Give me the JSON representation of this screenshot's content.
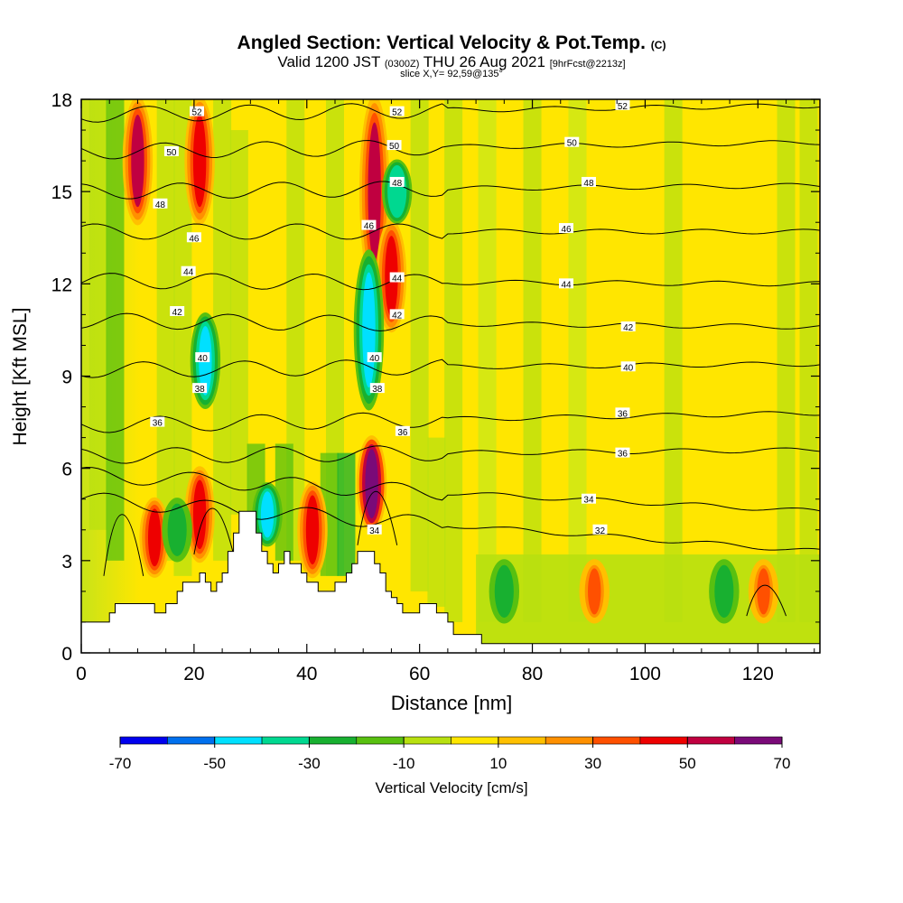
{
  "title": {
    "main": "Angled Section: Vertical Velocity & Pot.Temp.",
    "main_unit": "(C)",
    "valid_a": "Valid 1200 JST",
    "valid_z": "(0300Z)",
    "valid_b": "THU 26 Aug 2021",
    "fcst": "[9hrFcst@2213z]",
    "slice": "slice X,Y= 92,59@135°"
  },
  "colorbar": {
    "label": "Vertical Velocity [cm/s]",
    "tick_labels": [
      "-70",
      "-50",
      "-30",
      "-10",
      "10",
      "30",
      "50",
      "70"
    ],
    "colors": [
      "#0000ee",
      "#0070ee",
      "#00e0ff",
      "#00d890",
      "#18b030",
      "#58c010",
      "#b8e010",
      "#ffe600",
      "#ffc000",
      "#ff9000",
      "#ff5000",
      "#ee0000",
      "#c00040",
      "#7a0a78"
    ]
  },
  "chart_data": {
    "type": "heatmap",
    "title": "Angled Section: Vertical Velocity & Pot.Temp. (C)",
    "xlabel": "Distance [nm]",
    "ylabel": "Height [Kft MSL]",
    "xlim": [
      0,
      131
    ],
    "ylim": [
      0,
      18
    ],
    "xticks": [
      0,
      20,
      40,
      60,
      80,
      100,
      120
    ],
    "yticks": [
      0,
      3,
      6,
      9,
      12,
      15,
      18
    ],
    "filled_variable": "Vertical Velocity [cm/s]",
    "color_levels": [
      -70,
      -60,
      -50,
      -40,
      -30,
      -20,
      -10,
      0,
      10,
      20,
      30,
      40,
      50,
      60,
      70
    ],
    "terrain": [
      [
        0,
        0
      ],
      [
        0,
        1
      ],
      [
        1,
        1
      ],
      [
        5,
        1
      ],
      [
        5,
        1.3
      ],
      [
        6,
        1.3
      ],
      [
        6,
        1.6
      ],
      [
        9,
        1.6
      ],
      [
        9,
        1.6
      ],
      [
        13,
        1.6
      ],
      [
        13,
        1.3
      ],
      [
        15,
        1.3
      ],
      [
        15,
        1.6
      ],
      [
        17,
        1.6
      ],
      [
        17,
        2
      ],
      [
        18,
        2
      ],
      [
        18,
        2.3
      ],
      [
        21,
        2.3
      ],
      [
        21,
        2.6
      ],
      [
        22,
        2.6
      ],
      [
        22,
        2.3
      ],
      [
        23,
        2.3
      ],
      [
        23,
        2
      ],
      [
        24,
        2
      ],
      [
        24,
        2.3
      ],
      [
        25,
        2.3
      ],
      [
        25,
        2.6
      ],
      [
        26,
        2.6
      ],
      [
        26,
        3.3
      ],
      [
        27,
        3.3
      ],
      [
        27,
        3.9
      ],
      [
        28,
        3.9
      ],
      [
        28,
        4.6
      ],
      [
        31,
        4.6
      ],
      [
        31,
        3.9
      ],
      [
        32,
        3.9
      ],
      [
        32,
        3.3
      ],
      [
        33,
        3.3
      ],
      [
        33,
        2.9
      ],
      [
        34,
        2.9
      ],
      [
        34,
        2.6
      ],
      [
        35,
        2.6
      ],
      [
        35,
        2.9
      ],
      [
        36,
        2.9
      ],
      [
        36,
        3.3
      ],
      [
        37,
        3.3
      ],
      [
        37,
        2.9
      ],
      [
        39,
        2.9
      ],
      [
        39,
        2.6
      ],
      [
        40,
        2.6
      ],
      [
        40,
        2.3
      ],
      [
        42,
        2.3
      ],
      [
        42,
        2
      ],
      [
        45,
        2
      ],
      [
        45,
        2.3
      ],
      [
        47,
        2.3
      ],
      [
        47,
        2.6
      ],
      [
        48,
        2.6
      ],
      [
        48,
        2.9
      ],
      [
        49,
        2.9
      ],
      [
        49,
        3.3
      ],
      [
        52,
        3.3
      ],
      [
        52,
        2.9
      ],
      [
        53,
        2.9
      ],
      [
        53,
        2.6
      ],
      [
        54,
        2.6
      ],
      [
        54,
        2
      ],
      [
        55,
        2
      ],
      [
        55,
        1.8
      ],
      [
        56,
        1.8
      ],
      [
        56,
        1.6
      ],
      [
        57,
        1.6
      ],
      [
        57,
        1.3
      ],
      [
        60,
        1.3
      ],
      [
        60,
        1.6
      ],
      [
        63,
        1.6
      ],
      [
        63,
        1.3
      ],
      [
        65,
        1.3
      ],
      [
        65,
        1
      ],
      [
        66,
        1
      ],
      [
        66,
        0.6
      ],
      [
        71,
        0.6
      ],
      [
        71,
        0.3
      ],
      [
        131,
        0.3
      ],
      [
        131,
        0
      ]
    ],
    "updrafts": [
      {
        "x": 10,
        "y_bottom": 14,
        "y_top": 18,
        "w_cm_s": 50
      },
      {
        "x": 21,
        "y_bottom": 14,
        "y_top": 18,
        "w_cm_s": 40
      },
      {
        "x": 21,
        "y_bottom": 3,
        "y_top": 6,
        "w_cm_s": 40
      },
      {
        "x": 13,
        "y_bottom": 2.5,
        "y_top": 5,
        "w_cm_s": 40
      },
      {
        "x": 51.5,
        "y_bottom": 4,
        "y_top": 7,
        "w_cm_s": 70
      },
      {
        "x": 52,
        "y_bottom": 12,
        "y_top": 18,
        "w_cm_s": 50
      },
      {
        "x": 55,
        "y_bottom": 10.5,
        "y_top": 14,
        "w_cm_s": 40
      },
      {
        "x": 41,
        "y_bottom": 2.5,
        "y_top": 5.5,
        "w_cm_s": 40
      },
      {
        "x": 91,
        "y_bottom": 1,
        "y_top": 3,
        "w_cm_s": 30
      },
      {
        "x": 121,
        "y_bottom": 1,
        "y_top": 3,
        "w_cm_s": 30
      }
    ],
    "downdrafts": [
      {
        "x": 22,
        "y_bottom": 8,
        "y_top": 11,
        "w_cm_s": -50
      },
      {
        "x": 51,
        "y_bottom": 8,
        "y_top": 13,
        "w_cm_s": -50
      },
      {
        "x": 56,
        "y_bottom": 14,
        "y_top": 16,
        "w_cm_s": -40
      },
      {
        "x": 33,
        "y_bottom": 3.5,
        "y_top": 5.5,
        "w_cm_s": -50
      },
      {
        "x": 17,
        "y_bottom": 3,
        "y_top": 5,
        "w_cm_s": -30
      },
      {
        "x": 75,
        "y_bottom": 1,
        "y_top": 3,
        "w_cm_s": -30
      },
      {
        "x": 114,
        "y_bottom": 1,
        "y_top": 3,
        "w_cm_s": -30
      }
    ],
    "theta_contours": [
      {
        "label": "32",
        "y_west": 5.0,
        "y_east": 3.3,
        "label_x": 92,
        "label_y": 4.0
      },
      {
        "label": "34",
        "y_west": 5.8,
        "y_east": 4.6,
        "label_x": 90,
        "label_y": 5.0
      },
      {
        "label": "36",
        "y_west": 6.4,
        "y_east": 6.6,
        "label_x": 96,
        "label_y": 6.5
      },
      {
        "label": "36",
        "y_west": 7.4,
        "y_east": 7.8,
        "label_x": 96,
        "label_y": 7.8
      },
      {
        "label": "40",
        "y_west": 9.2,
        "y_east": 9.4,
        "label_x": 97,
        "label_y": 9.3
      },
      {
        "label": "42",
        "y_west": 10.8,
        "y_east": 10.6,
        "label_x": 97,
        "label_y": 10.6
      },
      {
        "label": "44",
        "y_west": 12.1,
        "y_east": 12.0,
        "label_x": 86,
        "label_y": 12.0
      },
      {
        "label": "46",
        "y_west": 13.7,
        "y_east": 13.7,
        "label_x": 86,
        "label_y": 13.8
      },
      {
        "label": "48",
        "y_west": 15.0,
        "y_east": 15.2,
        "label_x": 90,
        "label_y": 15.3
      },
      {
        "label": "50",
        "y_west": 16.3,
        "y_east": 16.6,
        "label_x": 87,
        "label_y": 16.6
      },
      {
        "label": "52",
        "y_west": 17.5,
        "y_east": 17.8,
        "label_x": 96,
        "label_y": 17.8
      }
    ],
    "extra_contour_labels": [
      {
        "label": "52",
        "x": 20.5,
        "y": 17.6
      },
      {
        "label": "50",
        "x": 16,
        "y": 16.3
      },
      {
        "label": "48",
        "x": 14,
        "y": 14.6
      },
      {
        "label": "46",
        "x": 20,
        "y": 13.5
      },
      {
        "label": "44",
        "x": 19,
        "y": 12.4
      },
      {
        "label": "42",
        "x": 17,
        "y": 11.1
      },
      {
        "label": "40",
        "x": 21.5,
        "y": 9.6
      },
      {
        "label": "38",
        "x": 21,
        "y": 8.6
      },
      {
        "label": "36",
        "x": 13.5,
        "y": 7.5
      },
      {
        "label": "52",
        "x": 56,
        "y": 17.6
      },
      {
        "label": "50",
        "x": 55.5,
        "y": 16.5
      },
      {
        "label": "48",
        "x": 56,
        "y": 15.3
      },
      {
        "label": "46",
        "x": 51,
        "y": 13.9
      },
      {
        "label": "44",
        "x": 56,
        "y": 12.2
      },
      {
        "label": "42",
        "x": 56,
        "y": 11.0
      },
      {
        "label": "40",
        "x": 52,
        "y": 9.6
      },
      {
        "label": "38",
        "x": 52.5,
        "y": 8.6
      },
      {
        "label": "36",
        "x": 57,
        "y": 7.2
      },
      {
        "label": "34",
        "x": 52,
        "y": 4.0
      }
    ]
  }
}
